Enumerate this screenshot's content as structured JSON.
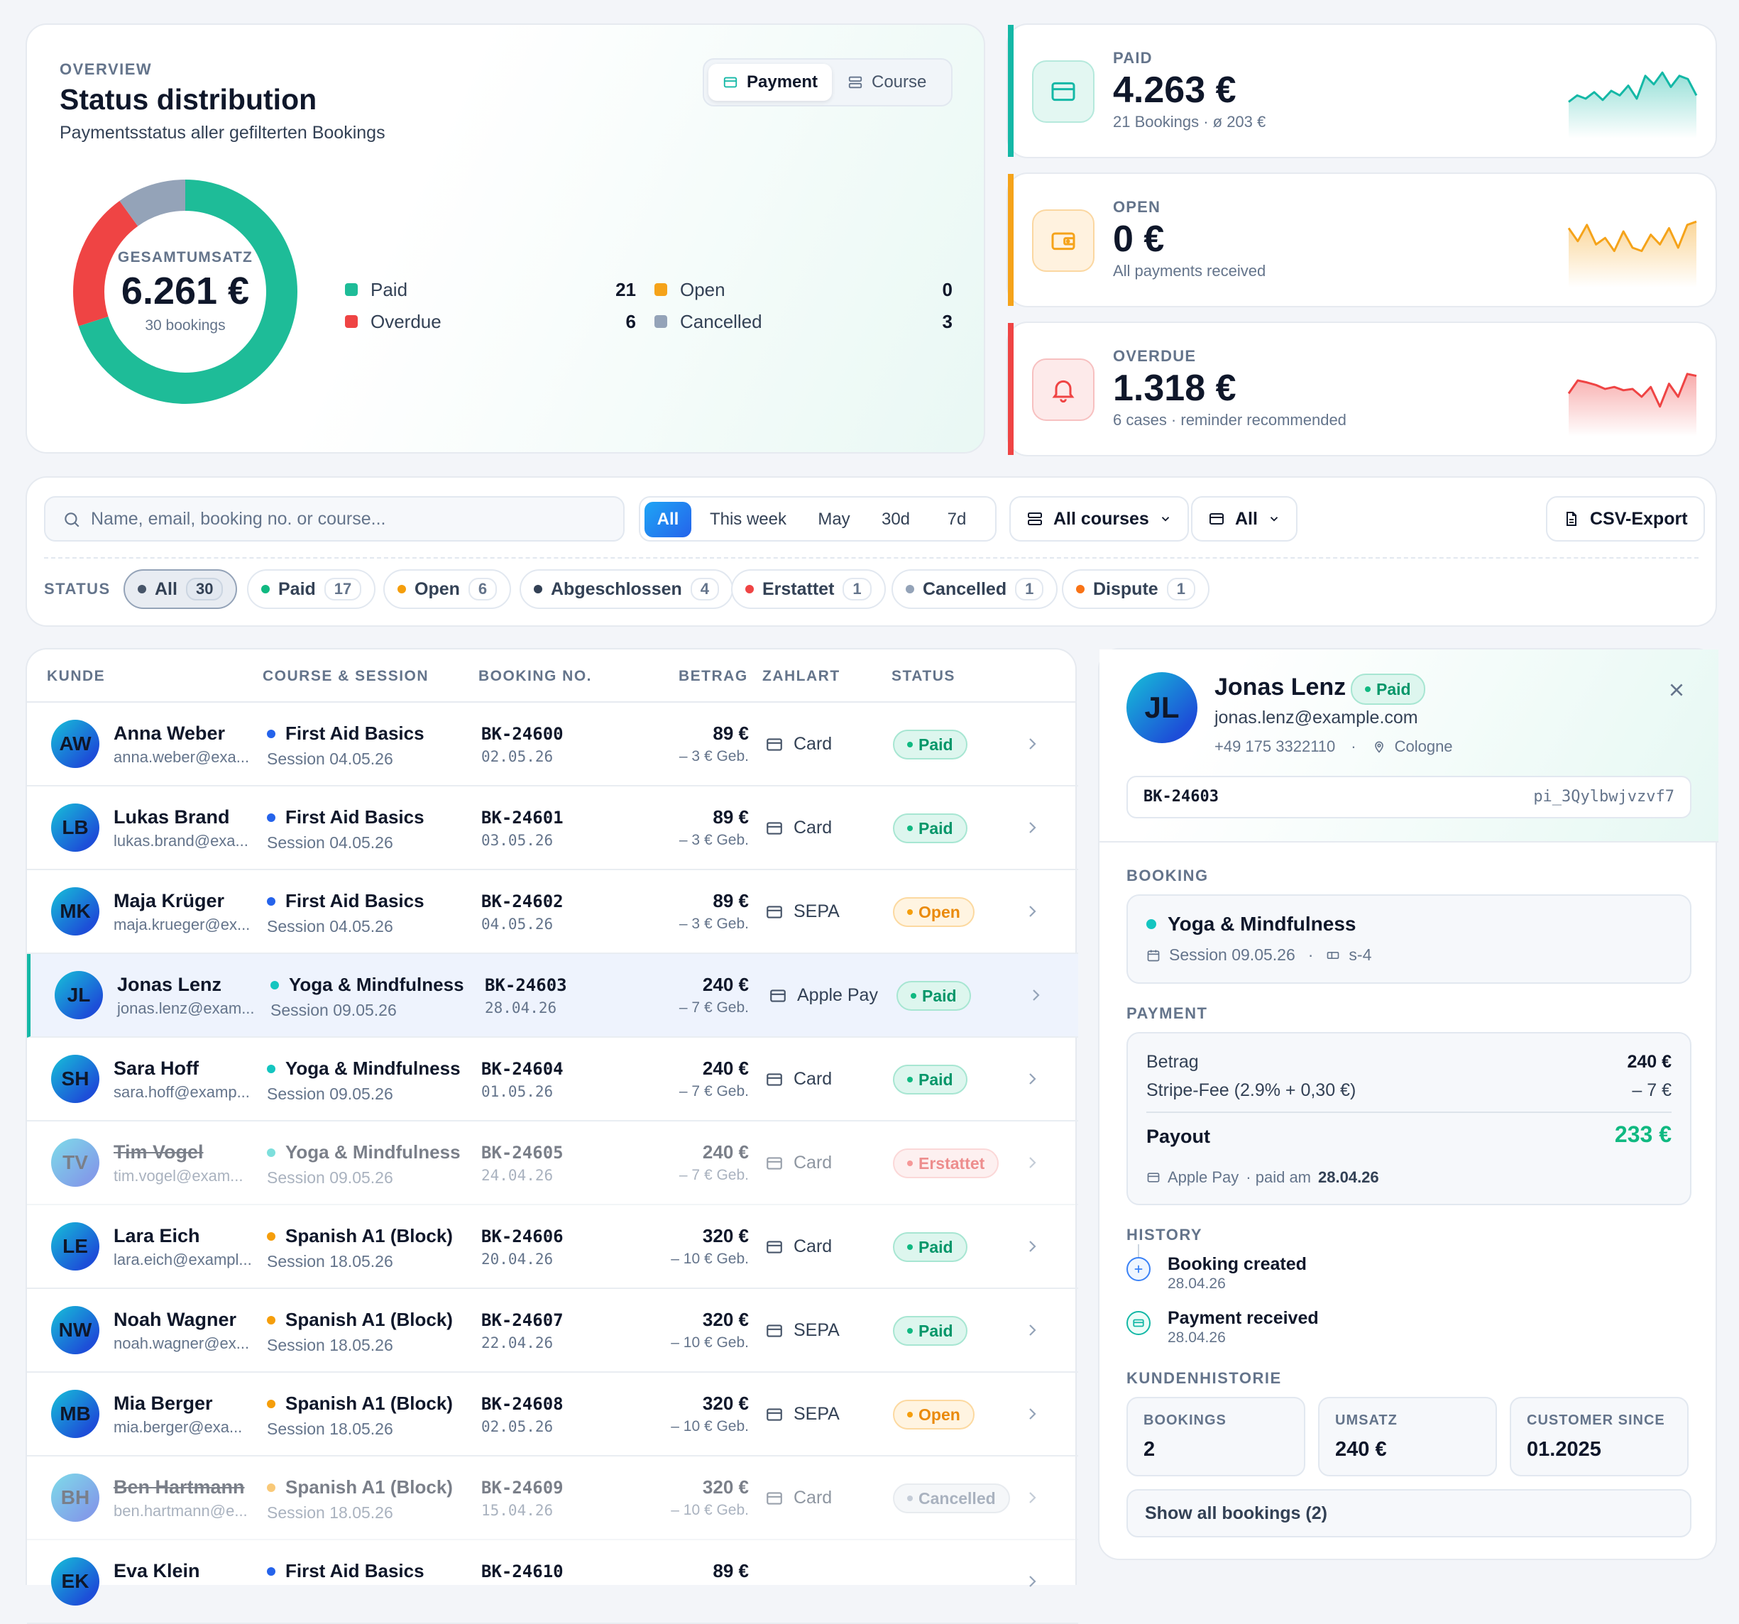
{
  "overview": {
    "eyebrow": "OVERVIEW",
    "title": "Status distribution",
    "subtitle": "Paymentsstatus aller gefilterten Bookings",
    "toggle": {
      "payment": "Payment",
      "course": "Course",
      "active": "payment"
    },
    "center_label": "GESAMTUMSATZ",
    "center_value": "6.261 €",
    "center_sub": "30 bookings",
    "legend": [
      {
        "label": "Paid",
        "count": "21",
        "color": "#1ebc98"
      },
      {
        "label": "Open",
        "count": "0",
        "color": "#f5a31a"
      },
      {
        "label": "Overdue",
        "count": "6",
        "color": "#ef4444"
      },
      {
        "label": "Cancelled",
        "count": "3",
        "color": "#94a3b8"
      }
    ]
  },
  "chart_data": {
    "type": "pie",
    "categories": [
      "Paid",
      "Open",
      "Overdue",
      "Cancelled"
    ],
    "values": [
      21,
      0,
      6,
      3
    ],
    "colors": [
      "#1ebc98",
      "#f5a31a",
      "#ef4444",
      "#94a3b8"
    ],
    "title": "Status distribution"
  },
  "kpis": [
    {
      "label": "PAID",
      "value": "4.263 €",
      "sub": "21 Bookings · ø 203 €",
      "color": "#14b8a6",
      "icon": "card-icon",
      "spark": [
        0.45,
        0.55,
        0.5,
        0.6,
        0.48,
        0.62,
        0.55,
        0.7,
        0.5,
        0.85,
        0.72,
        0.9,
        0.68,
        0.85,
        0.8,
        0.55
      ]
    },
    {
      "label": "OPEN",
      "value": "0 €",
      "sub": "All payments received",
      "color": "#f5a31a",
      "icon": "wallet-icon",
      "spark": [
        0.8,
        0.6,
        0.85,
        0.55,
        0.65,
        0.45,
        0.75,
        0.5,
        0.45,
        0.7,
        0.55,
        0.8,
        0.5,
        0.85,
        0.9
      ]
    },
    {
      "label": "OVERDUE",
      "value": "1.318 €",
      "sub": "6 cases · reminder recommended",
      "color": "#ef4444",
      "icon": "bell-icon",
      "spark": [
        0.55,
        0.75,
        0.72,
        0.68,
        0.62,
        0.65,
        0.6,
        0.62,
        0.5,
        0.65,
        0.35,
        0.7,
        0.5,
        0.85,
        0.82
      ]
    }
  ],
  "filter": {
    "search_placeholder": "Name, email, booking no. or course...",
    "ranges": [
      "All",
      "This week",
      "May",
      "30d",
      "7d"
    ],
    "courses_dropdown": "All courses",
    "pay_dropdown": "All",
    "export": "CSV-Export",
    "status_label": "STATUS",
    "chips": [
      {
        "label": "All",
        "count": "30",
        "color": "#475569"
      },
      {
        "label": "Paid",
        "count": "17",
        "color": "#10b981"
      },
      {
        "label": "Open",
        "count": "6",
        "color": "#f59e0b"
      },
      {
        "label": "Abgeschlossen",
        "count": "4",
        "color": "#334155"
      },
      {
        "label": "Erstattet",
        "count": "1",
        "color": "#ef4444"
      },
      {
        "label": "Cancelled",
        "count": "1",
        "color": "#94a3b8"
      },
      {
        "label": "Dispute",
        "count": "1",
        "color": "#f97316"
      }
    ]
  },
  "table": {
    "headers": [
      "KUNDE",
      "COURSE & SESSION",
      "BOOKING NO.",
      "BETRAG",
      "ZAHLART",
      "STATUS"
    ],
    "rows": [
      {
        "initials": "AW",
        "name": "Anna Weber",
        "email": "anna.weber@exa...",
        "course": "First Aid Basics",
        "dot": "#2563eb",
        "session": "Session 04.05.26",
        "bk": "BK-24600",
        "date": "02.05.26",
        "amount": "89 €",
        "fee": "– 3 € Geb.",
        "pay": "Card",
        "status": "Paid",
        "kind": "paid"
      },
      {
        "initials": "LB",
        "name": "Lukas Brand",
        "email": "lukas.brand@exa...",
        "course": "First Aid Basics",
        "dot": "#2563eb",
        "session": "Session 04.05.26",
        "bk": "BK-24601",
        "date": "03.05.26",
        "amount": "89 €",
        "fee": "– 3 € Geb.",
        "pay": "Card",
        "status": "Paid",
        "kind": "paid"
      },
      {
        "initials": "MK",
        "name": "Maja Krüger",
        "email": "maja.krueger@ex...",
        "course": "First Aid Basics",
        "dot": "#2563eb",
        "session": "Session 04.05.26",
        "bk": "BK-24602",
        "date": "04.05.26",
        "amount": "89 €",
        "fee": "– 3 € Geb.",
        "pay": "SEPA",
        "status": "Open",
        "kind": "open"
      },
      {
        "initials": "JL",
        "name": "Jonas Lenz",
        "email": "jonas.lenz@exam...",
        "course": "Yoga & Mindfulness",
        "dot": "#14c5c0",
        "session": "Session 09.05.26",
        "bk": "BK-24603",
        "date": "28.04.26",
        "amount": "240 €",
        "fee": "– 7 € Geb.",
        "pay": "Apple Pay",
        "status": "Paid",
        "kind": "paid",
        "selected": true
      },
      {
        "initials": "SH",
        "name": "Sara Hoff",
        "email": "sara.hoff@examp...",
        "course": "Yoga & Mindfulness",
        "dot": "#14c5c0",
        "session": "Session 09.05.26",
        "bk": "BK-24604",
        "date": "01.05.26",
        "amount": "240 €",
        "fee": "– 7 € Geb.",
        "pay": "Card",
        "status": "Paid",
        "kind": "paid"
      },
      {
        "initials": "TV",
        "name": "Tim Vogel",
        "email": "tim.vogel@exam...",
        "course": "Yoga & Mindfulness",
        "dot": "#14c5c0",
        "session": "Session 09.05.26",
        "bk": "BK-24605",
        "date": "24.04.26",
        "amount": "240 €",
        "fee": "– 7 € Geb.",
        "pay": "Card",
        "status": "Erstattet",
        "kind": "refund",
        "muted": true
      },
      {
        "initials": "LE",
        "name": "Lara Eich",
        "email": "lara.eich@exampl...",
        "course": "Spanish A1 (Block)",
        "dot": "#f59e0b",
        "session": "Session 18.05.26",
        "bk": "BK-24606",
        "date": "20.04.26",
        "amount": "320 €",
        "fee": "– 10 € Geb.",
        "pay": "Card",
        "status": "Paid",
        "kind": "paid"
      },
      {
        "initials": "NW",
        "name": "Noah Wagner",
        "email": "noah.wagner@ex...",
        "course": "Spanish A1 (Block)",
        "dot": "#f59e0b",
        "session": "Session 18.05.26",
        "bk": "BK-24607",
        "date": "22.04.26",
        "amount": "320 €",
        "fee": "– 10 € Geb.",
        "pay": "SEPA",
        "status": "Paid",
        "kind": "paid"
      },
      {
        "initials": "MB",
        "name": "Mia Berger",
        "email": "mia.berger@exa...",
        "course": "Spanish A1 (Block)",
        "dot": "#f59e0b",
        "session": "Session 18.05.26",
        "bk": "BK-24608",
        "date": "02.05.26",
        "amount": "320 €",
        "fee": "– 10 € Geb.",
        "pay": "SEPA",
        "status": "Open",
        "kind": "open"
      },
      {
        "initials": "BH",
        "name": "Ben Hartmann",
        "email": "ben.hartmann@e...",
        "course": "Spanish A1 (Block)",
        "dot": "#f59e0b",
        "session": "Session 18.05.26",
        "bk": "BK-24609",
        "date": "15.04.26",
        "amount": "320 €",
        "fee": "– 10 € Geb.",
        "pay": "Card",
        "status": "Cancelled",
        "kind": "cancel",
        "muted": true
      },
      {
        "initials": "EK",
        "name": "Eva Klein",
        "email": "",
        "course": "First Aid Basics",
        "dot": "#2563eb",
        "session": "",
        "bk": "BK-24610",
        "date": "",
        "amount": "89 €",
        "fee": "",
        "pay": "",
        "status": "",
        "kind": "paid"
      }
    ]
  },
  "detail": {
    "initials": "JL",
    "name": "Jonas Lenz",
    "status": "Paid",
    "email": "jonas.lenz@example.com",
    "phone": "+49 175 3322110",
    "sep": "·",
    "city": "Cologne",
    "booking_no": "BK-24603",
    "payment_id": "pi_3Qylbwjvzvf7",
    "booking_label": "BOOKING",
    "course": "Yoga & Mindfulness",
    "session": "Session 09.05.26",
    "room": "s-4",
    "payment_label": "PAYMENT",
    "amount_label": "Betrag",
    "amount": "240 €",
    "fee_label": "Stripe-Fee (2.9% + 0,30 €)",
    "fee": "– 7 €",
    "payout_label": "Payout",
    "payout": "233 €",
    "pay_method": "Apple Pay",
    "paid_on_label": "· paid am",
    "paid_on": "28.04.26",
    "history_label": "HISTORY",
    "history": [
      {
        "title": "Booking created",
        "date": "28.04.26"
      },
      {
        "title": "Payment received",
        "date": "28.04.26"
      }
    ],
    "customer_label": "KUNDENHISTORIE",
    "stats": [
      {
        "label": "BOOKINGS",
        "value": "2"
      },
      {
        "label": "UMSATZ",
        "value": "240 €"
      },
      {
        "label": "CUSTOMER SINCE",
        "value": "01.2025"
      }
    ],
    "show_all": "Show all bookings (2)"
  }
}
